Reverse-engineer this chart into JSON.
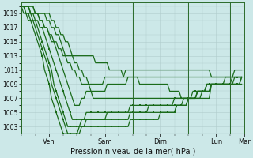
{
  "xlabel": "Pression niveau de la mer( hPa )",
  "background_color": "#cce8e8",
  "grid_color": "#b0cccc",
  "line_color": "#1a6b1a",
  "yticks": [
    1003,
    1005,
    1007,
    1009,
    1011,
    1013,
    1015,
    1017,
    1019
  ],
  "ylim": [
    1002.0,
    1020.5
  ],
  "xlim": [
    0,
    96
  ],
  "day_ticks": [
    12,
    36,
    60,
    84,
    96
  ],
  "day_labels": [
    "Ven",
    "Sam",
    "Dim",
    "Lun",
    "Mar"
  ],
  "day_lines": [
    0,
    24,
    48,
    72,
    90
  ],
  "lines": [
    {
      "y": [
        1020,
        1020,
        1020,
        1020,
        1020,
        1020,
        1019,
        1019,
        1019,
        1019,
        1019,
        1019,
        1019,
        1018,
        1018,
        1017,
        1017,
        1016,
        1016,
        1015,
        1015,
        1014,
        1013,
        1012,
        1012,
        1011,
        1011,
        1010,
        1010,
        1009,
        1009,
        1009,
        1009,
        1009,
        1009,
        1009,
        1010,
        1010,
        1010,
        1010,
        1010,
        1010,
        1010,
        1010,
        1010,
        1011,
        1011,
        1011,
        1011,
        1011,
        1011,
        1011,
        1011,
        1011,
        1011,
        1011,
        1011,
        1011,
        1011,
        1011,
        1011,
        1011,
        1011,
        1011,
        1011,
        1011,
        1011,
        1011,
        1011,
        1011,
        1011,
        1011,
        1011,
        1011,
        1011,
        1011,
        1011,
        1011,
        1011,
        1011,
        1011,
        1011,
        1010,
        1010,
        1010,
        1010,
        1010,
        1010,
        1010,
        1010,
        1010,
        1010,
        1010,
        1010,
        1010,
        1010
      ],
      "marker": false,
      "lw": 0.9
    },
    {
      "y": [
        1020,
        1020,
        1020,
        1020,
        1020,
        1020,
        1019,
        1019,
        1019,
        1019,
        1019,
        1018,
        1018,
        1017,
        1017,
        1016,
        1016,
        1015,
        1014,
        1013,
        1012,
        1012,
        1011,
        1011,
        1010,
        1010,
        1009,
        1009,
        1009,
        1009,
        1008,
        1008,
        1008,
        1008,
        1008,
        1008,
        1008,
        1009,
        1009,
        1009,
        1009,
        1009,
        1009,
        1009,
        1009,
        1009,
        1010,
        1010,
        1010,
        1010,
        1010,
        1010,
        1010,
        1010,
        1010,
        1010,
        1010,
        1010,
        1010,
        1010,
        1010,
        1010,
        1010,
        1010,
        1010,
        1010,
        1010,
        1010,
        1010,
        1010,
        1010,
        1010,
        1010,
        1010,
        1010,
        1010,
        1010,
        1010,
        1010,
        1010,
        1010,
        1010,
        1010,
        1010,
        1010,
        1010,
        1010,
        1010,
        1010,
        1010,
        1010,
        1010,
        1011,
        1011,
        1011,
        1011
      ],
      "marker": false,
      "lw": 0.9
    },
    {
      "y": [
        1020,
        1020,
        1020,
        1020,
        1019,
        1019,
        1019,
        1019,
        1018,
        1018,
        1017,
        1017,
        1016,
        1015,
        1015,
        1014,
        1013,
        1012,
        1011,
        1010,
        1009,
        1008,
        1007,
        1006,
        1006,
        1006,
        1007,
        1007,
        1008,
        1008,
        1008,
        1007,
        1007,
        1007,
        1007,
        1007,
        1007,
        1007,
        1007,
        1007,
        1007,
        1007,
        1007,
        1007,
        1007,
        1007,
        1007,
        1007,
        1007,
        1007,
        1007,
        1007,
        1007,
        1007,
        1007,
        1007,
        1007,
        1007,
        1007,
        1007,
        1007,
        1007,
        1007,
        1007,
        1007,
        1007,
        1007,
        1007,
        1007,
        1007,
        1007,
        1007,
        1007,
        1007,
        1007,
        1007,
        1007,
        1007,
        1007,
        1007,
        1007,
        1007,
        1009,
        1009,
        1009,
        1009,
        1009,
        1009,
        1009,
        1009,
        1009,
        1010,
        1010,
        1010,
        1010,
        1010
      ],
      "marker": false,
      "lw": 0.9
    },
    {
      "y": [
        1020,
        1020,
        1020,
        1020,
        1019,
        1019,
        1018,
        1018,
        1017,
        1017,
        1016,
        1015,
        1014,
        1013,
        1012,
        1011,
        1010,
        1009,
        1008,
        1007,
        1006,
        1005,
        1004,
        1004,
        1004,
        1004,
        1004,
        1004,
        1005,
        1005,
        1005,
        1005,
        1005,
        1005,
        1005,
        1005,
        1005,
        1005,
        1005,
        1005,
        1005,
        1005,
        1005,
        1005,
        1005,
        1005,
        1005,
        1006,
        1006,
        1006,
        1006,
        1006,
        1006,
        1006,
        1006,
        1006,
        1006,
        1006,
        1006,
        1006,
        1006,
        1006,
        1006,
        1006,
        1006,
        1006,
        1006,
        1006,
        1006,
        1006,
        1007,
        1007,
        1007,
        1007,
        1007,
        1007,
        1008,
        1008,
        1008,
        1008,
        1008,
        1008,
        1009,
        1009,
        1009,
        1009,
        1009,
        1009,
        1009,
        1009,
        1009,
        1009,
        1009,
        1009,
        1009,
        1009
      ],
      "marker": true,
      "lw": 0.9
    },
    {
      "y": [
        1020,
        1020,
        1019,
        1019,
        1019,
        1018,
        1018,
        1017,
        1016,
        1015,
        1014,
        1013,
        1012,
        1011,
        1009,
        1008,
        1007,
        1006,
        1005,
        1004,
        1003,
        1003,
        1003,
        1003,
        1003,
        1003,
        1004,
        1004,
        1004,
        1004,
        1004,
        1004,
        1004,
        1004,
        1004,
        1004,
        1004,
        1005,
        1005,
        1005,
        1005,
        1005,
        1005,
        1005,
        1005,
        1005,
        1005,
        1005,
        1005,
        1005,
        1005,
        1005,
        1005,
        1005,
        1005,
        1006,
        1006,
        1006,
        1006,
        1006,
        1006,
        1006,
        1006,
        1006,
        1006,
        1006,
        1007,
        1007,
        1007,
        1007,
        1007,
        1007,
        1007,
        1007,
        1008,
        1008,
        1008,
        1008,
        1008,
        1008,
        1009,
        1009,
        1009,
        1009,
        1009,
        1009,
        1009,
        1009,
        1009,
        1009,
        1009,
        1009,
        1009,
        1009,
        1009,
        1010
      ],
      "marker": true,
      "lw": 0.9
    },
    {
      "y": [
        1020,
        1020,
        1019,
        1019,
        1018,
        1018,
        1017,
        1016,
        1015,
        1014,
        1013,
        1012,
        1011,
        1009,
        1008,
        1007,
        1006,
        1005,
        1004,
        1003,
        1002,
        1002,
        1002,
        1002,
        1002,
        1003,
        1003,
        1003,
        1004,
        1004,
        1004,
        1004,
        1004,
        1004,
        1004,
        1004,
        1004,
        1004,
        1004,
        1004,
        1004,
        1004,
        1004,
        1004,
        1004,
        1004,
        1004,
        1005,
        1005,
        1005,
        1005,
        1005,
        1005,
        1005,
        1005,
        1005,
        1005,
        1005,
        1005,
        1005,
        1005,
        1005,
        1005,
        1005,
        1005,
        1005,
        1005,
        1006,
        1006,
        1006,
        1006,
        1006,
        1007,
        1007,
        1007,
        1007,
        1008,
        1008,
        1008,
        1008,
        1009,
        1009,
        1009,
        1009,
        1009,
        1009,
        1009,
        1009,
        1009,
        1009,
        1009,
        1009,
        1009,
        1009,
        1009,
        1010
      ],
      "marker": true,
      "lw": 0.9
    },
    {
      "y": [
        1020,
        1019,
        1019,
        1018,
        1018,
        1017,
        1016,
        1015,
        1014,
        1013,
        1011,
        1010,
        1009,
        1007,
        1006,
        1005,
        1004,
        1003,
        1002,
        1002,
        1002,
        1002,
        1002,
        1002,
        1002,
        1002,
        1003,
        1003,
        1003,
        1003,
        1003,
        1003,
        1003,
        1003,
        1003,
        1003,
        1003,
        1003,
        1003,
        1003,
        1003,
        1003,
        1003,
        1003,
        1003,
        1003,
        1003,
        1004,
        1004,
        1004,
        1004,
        1004,
        1004,
        1004,
        1004,
        1004,
        1004,
        1004,
        1004,
        1004,
        1005,
        1005,
        1005,
        1005,
        1005,
        1005,
        1005,
        1006,
        1006,
        1006,
        1006,
        1006,
        1007,
        1007,
        1007,
        1007,
        1008,
        1008,
        1008,
        1008,
        1009,
        1009,
        1009,
        1009,
        1009,
        1009,
        1009,
        1009,
        1009,
        1009,
        1009,
        1009,
        1010,
        1010,
        1010,
        1010
      ],
      "marker": true,
      "lw": 0.9
    },
    {
      "y": [
        1020,
        1020,
        1020,
        1020,
        1019,
        1019,
        1019,
        1019,
        1018,
        1018,
        1017,
        1017,
        1016,
        1016,
        1015,
        1015,
        1014,
        1014,
        1013,
        1013,
        1013,
        1013,
        1013,
        1013,
        1013,
        1013,
        1013,
        1013,
        1013,
        1013,
        1013,
        1013,
        1012,
        1012,
        1012,
        1012,
        1012,
        1012,
        1011,
        1011,
        1011,
        1011,
        1011,
        1011,
        1010,
        1010,
        1010,
        1010,
        1010,
        1010,
        1010,
        1009,
        1009,
        1009,
        1009,
        1009,
        1009,
        1009,
        1009,
        1009,
        1009,
        1009,
        1009,
        1009,
        1008,
        1008,
        1008,
        1008,
        1008,
        1007,
        1007,
        1007,
        1007,
        1007,
        1007,
        1007,
        1007,
        1007,
        1008,
        1008,
        1008,
        1008,
        1009,
        1009,
        1009,
        1009,
        1009,
        1009,
        1010,
        1010,
        1010,
        1010,
        1010,
        1010,
        1010,
        1010
      ],
      "marker": false,
      "lw": 0.9
    }
  ]
}
